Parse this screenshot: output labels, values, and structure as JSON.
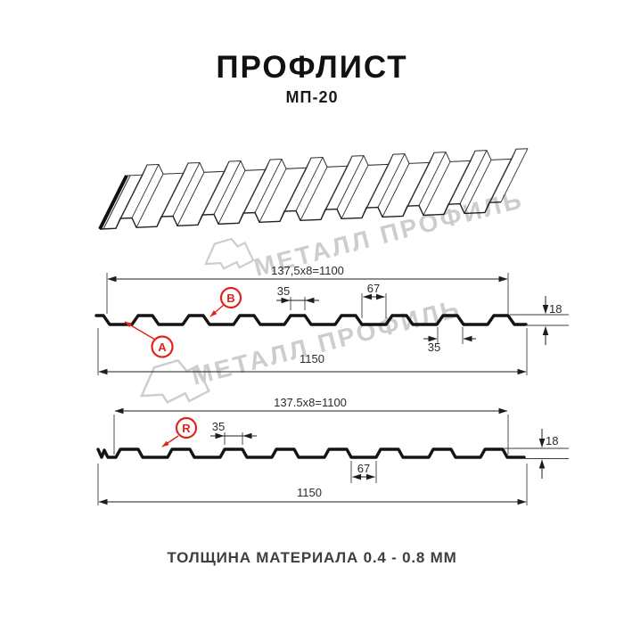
{
  "page": {
    "title": "ПРОФЛИСТ",
    "subtitle": "МП-20",
    "footer": "ТОЛЩИНА МАТЕРИАЛА 0.4 - 0.8 ММ"
  },
  "watermark": {
    "brand": "МЕТАЛЛ ПРОФИЛЬ"
  },
  "colors": {
    "accent_red": "#e2231a",
    "line": "#1d1d1d",
    "watermark_gray": "#cdcdcd"
  },
  "profile_a": {
    "width_formula": "137,5x8=1100",
    "overall_width": "1150",
    "rib_top_width": "35",
    "valley_width": "67",
    "rib_base_width": "35",
    "height": "18",
    "label_a": "A",
    "label_b": "B"
  },
  "profile_r": {
    "width_formula": "137.5x8=1100",
    "overall_width": "1150",
    "rib_top_width": "35",
    "valley_width": "67",
    "height": "18",
    "label_r": "R"
  }
}
